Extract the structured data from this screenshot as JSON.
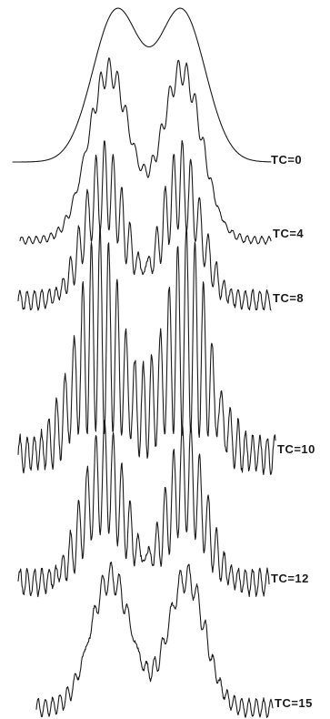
{
  "chart_data": {
    "type": "line",
    "title": "",
    "xlabel": "",
    "ylabel": "",
    "grid": false,
    "legend": "none",
    "series": [
      {
        "name": "TC=0",
        "peaks": 2,
        "fringes": 0,
        "fringe_depth": 0.0,
        "noise": 0.0
      },
      {
        "name": "TC=4",
        "peaks": 2,
        "fringes": 5,
        "fringe_depth": 0.15,
        "noise": 0.02
      },
      {
        "name": "TC=8",
        "peaks": 2,
        "fringes": 7,
        "fringe_depth": 0.55,
        "noise": 0.06
      },
      {
        "name": "TC=10",
        "peaks": 2,
        "fringes": 8,
        "fringe_depth": 0.9,
        "noise": 0.08
      },
      {
        "name": "TC=12",
        "peaks": 2,
        "fringes": 7,
        "fringe_depth": 0.7,
        "noise": 0.08
      },
      {
        "name": "TC=15",
        "peaks": 2,
        "fringes": 5,
        "fringe_depth": 0.2,
        "noise": 0.06
      }
    ]
  },
  "colors": {
    "trace": "#1a1a1a",
    "background": "#ffffff"
  }
}
